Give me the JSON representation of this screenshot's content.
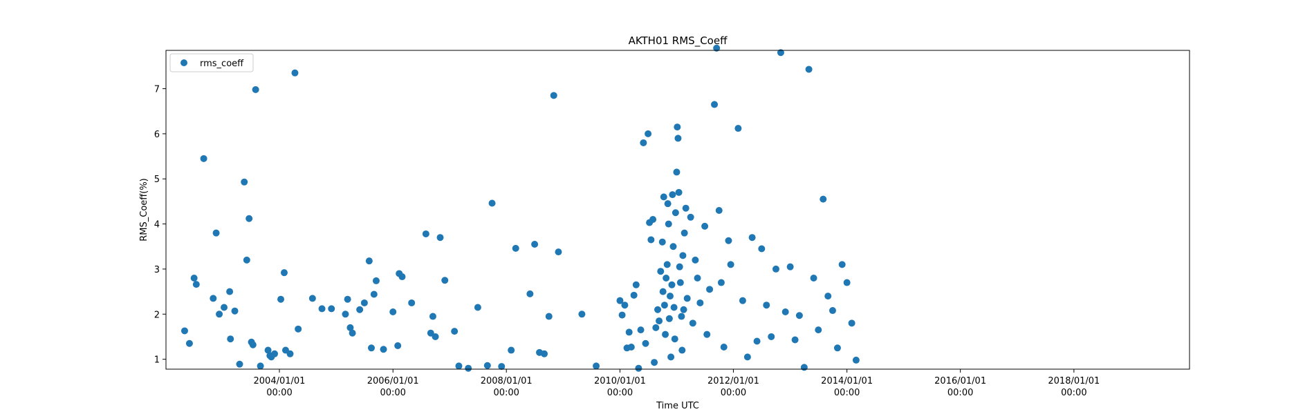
{
  "chart_data": {
    "type": "scatter",
    "title": "AKTH01 RMS_Coeff",
    "xlabel": "Time UTC",
    "ylabel": "RMS_Coeff(%)",
    "x_scale": "date",
    "xlim": [
      "2002-01-01",
      "2020-01-15"
    ],
    "ylim": [
      0.78,
      7.85
    ],
    "x_ticks": [
      {
        "date": "2004-01-01",
        "line1": "2004/01/01",
        "line2": "00:00"
      },
      {
        "date": "2006-01-01",
        "line1": "2006/01/01",
        "line2": "00:00"
      },
      {
        "date": "2008-01-01",
        "line1": "2008/01/01",
        "line2": "00:00"
      },
      {
        "date": "2010-01-01",
        "line1": "2010/01/01",
        "line2": "00:00"
      },
      {
        "date": "2012-01-01",
        "line1": "2012/01/01",
        "line2": "00:00"
      },
      {
        "date": "2014-01-01",
        "line1": "2014/01/01",
        "line2": "00:00"
      },
      {
        "date": "2016-01-01",
        "line1": "2016/01/01",
        "line2": "00:00"
      },
      {
        "date": "2018-01-01",
        "line1": "2018/01/01",
        "line2": "00:00"
      }
    ],
    "y_ticks": [
      1,
      2,
      3,
      4,
      5,
      6,
      7
    ],
    "grid": false,
    "legend_position": "top-left",
    "series": [
      {
        "name": "rms_coeff",
        "color": "#1f77b4",
        "points": [
          [
            "2002-05-01",
            1.63
          ],
          [
            "2002-06-01",
            1.35
          ],
          [
            "2002-07-01",
            2.8
          ],
          [
            "2002-07-15",
            2.66
          ],
          [
            "2002-09-01",
            5.45
          ],
          [
            "2002-11-01",
            2.35
          ],
          [
            "2002-11-20",
            3.8
          ],
          [
            "2002-12-10",
            2.0
          ],
          [
            "2003-01-10",
            2.15
          ],
          [
            "2003-02-15",
            2.5
          ],
          [
            "2003-02-20",
            1.45
          ],
          [
            "2003-03-20",
            2.07
          ],
          [
            "2003-04-20",
            0.89
          ],
          [
            "2003-05-20",
            4.93
          ],
          [
            "2003-06-05",
            3.2
          ],
          [
            "2003-06-20",
            4.12
          ],
          [
            "2003-07-05",
            1.38
          ],
          [
            "2003-07-15",
            1.32
          ],
          [
            "2003-08-01",
            6.98
          ],
          [
            "2003-09-01",
            0.85
          ],
          [
            "2003-10-20",
            1.2
          ],
          [
            "2003-11-01",
            1.08
          ],
          [
            "2003-11-10",
            1.05
          ],
          [
            "2003-12-01",
            1.12
          ],
          [
            "2004-01-10",
            2.33
          ],
          [
            "2004-02-01",
            2.92
          ],
          [
            "2004-02-10",
            1.2
          ],
          [
            "2004-03-10",
            1.12
          ],
          [
            "2004-04-10",
            7.35
          ],
          [
            "2004-05-01",
            1.67
          ],
          [
            "2004-08-01",
            2.35
          ],
          [
            "2004-10-01",
            2.12
          ],
          [
            "2004-12-01",
            2.12
          ],
          [
            "2005-03-01",
            2.0
          ],
          [
            "2005-03-15",
            2.33
          ],
          [
            "2005-04-01",
            1.7
          ],
          [
            "2005-04-15",
            1.58
          ],
          [
            "2005-06-01",
            2.1
          ],
          [
            "2005-07-01",
            2.25
          ],
          [
            "2005-08-01",
            3.18
          ],
          [
            "2005-08-15",
            1.25
          ],
          [
            "2005-09-01",
            2.44
          ],
          [
            "2005-09-15",
            2.74
          ],
          [
            "2005-11-01",
            1.22
          ],
          [
            "2006-01-01",
            2.05
          ],
          [
            "2006-02-01",
            1.3
          ],
          [
            "2006-02-10",
            2.9
          ],
          [
            "2006-03-01",
            2.83
          ],
          [
            "2006-05-01",
            2.25
          ],
          [
            "2006-08-01",
            3.78
          ],
          [
            "2006-09-01",
            1.58
          ],
          [
            "2006-09-15",
            1.95
          ],
          [
            "2006-10-01",
            1.5
          ],
          [
            "2006-11-01",
            3.7
          ],
          [
            "2006-12-01",
            2.75
          ],
          [
            "2007-02-01",
            1.62
          ],
          [
            "2007-03-01",
            0.85
          ],
          [
            "2007-05-01",
            0.8
          ],
          [
            "2007-07-01",
            2.15
          ],
          [
            "2007-09-01",
            0.86
          ],
          [
            "2007-10-01",
            4.46
          ],
          [
            "2007-12-01",
            0.84
          ],
          [
            "2008-02-01",
            1.2
          ],
          [
            "2008-03-01",
            3.46
          ],
          [
            "2008-06-01",
            2.45
          ],
          [
            "2008-07-01",
            3.55
          ],
          [
            "2008-08-01",
            1.15
          ],
          [
            "2008-09-01",
            1.12
          ],
          [
            "2008-10-01",
            1.95
          ],
          [
            "2008-11-01",
            6.85
          ],
          [
            "2008-12-01",
            3.38
          ],
          [
            "2009-05-01",
            2.0
          ],
          [
            "2009-08-01",
            0.85
          ],
          [
            "2010-01-01",
            2.3
          ],
          [
            "2010-01-15",
            1.98
          ],
          [
            "2010-02-01",
            2.2
          ],
          [
            "2010-02-15",
            1.25
          ],
          [
            "2010-03-01",
            1.6
          ],
          [
            "2010-03-15",
            1.27
          ],
          [
            "2010-04-01",
            2.42
          ],
          [
            "2010-04-15",
            2.65
          ],
          [
            "2010-05-01",
            0.8
          ],
          [
            "2010-05-15",
            1.65
          ],
          [
            "2010-06-01",
            5.8
          ],
          [
            "2010-06-15",
            1.35
          ],
          [
            "2010-07-01",
            6.0
          ],
          [
            "2010-07-10",
            4.03
          ],
          [
            "2010-07-20",
            3.65
          ],
          [
            "2010-08-01",
            4.1
          ],
          [
            "2010-08-10",
            0.93
          ],
          [
            "2010-08-20",
            1.7
          ],
          [
            "2010-09-01",
            2.1
          ],
          [
            "2010-09-10",
            1.85
          ],
          [
            "2010-09-20",
            2.95
          ],
          [
            "2010-10-01",
            3.6
          ],
          [
            "2010-10-05",
            2.5
          ],
          [
            "2010-10-10",
            4.6
          ],
          [
            "2010-10-15",
            2.2
          ],
          [
            "2010-10-20",
            1.55
          ],
          [
            "2010-10-25",
            2.8
          ],
          [
            "2010-11-01",
            3.1
          ],
          [
            "2010-11-05",
            4.45
          ],
          [
            "2010-11-10",
            4.0
          ],
          [
            "2010-11-15",
            1.9
          ],
          [
            "2010-11-20",
            2.4
          ],
          [
            "2010-11-25",
            1.05
          ],
          [
            "2010-12-01",
            2.65
          ],
          [
            "2010-12-05",
            4.65
          ],
          [
            "2010-12-10",
            3.5
          ],
          [
            "2010-12-15",
            2.15
          ],
          [
            "2010-12-20",
            1.45
          ],
          [
            "2010-12-25",
            4.25
          ],
          [
            "2011-01-01",
            5.15
          ],
          [
            "2011-01-05",
            6.15
          ],
          [
            "2011-01-10",
            5.9
          ],
          [
            "2011-01-15",
            4.7
          ],
          [
            "2011-01-20",
            3.05
          ],
          [
            "2011-01-25",
            2.7
          ],
          [
            "2011-02-01",
            1.95
          ],
          [
            "2011-02-05",
            1.2
          ],
          [
            "2011-02-10",
            3.3
          ],
          [
            "2011-02-15",
            2.1
          ],
          [
            "2011-02-20",
            3.8
          ],
          [
            "2011-03-01",
            4.35
          ],
          [
            "2011-03-10",
            2.35
          ],
          [
            "2011-04-01",
            4.15
          ],
          [
            "2011-04-15",
            1.8
          ],
          [
            "2011-05-01",
            3.2
          ],
          [
            "2011-05-15",
            2.8
          ],
          [
            "2011-06-01",
            2.25
          ],
          [
            "2011-07-01",
            3.95
          ],
          [
            "2011-07-15",
            1.55
          ],
          [
            "2011-08-01",
            2.55
          ],
          [
            "2011-09-01",
            6.65
          ],
          [
            "2011-09-15",
            7.9
          ],
          [
            "2011-10-01",
            4.3
          ],
          [
            "2011-10-15",
            2.7
          ],
          [
            "2011-11-01",
            1.27
          ],
          [
            "2011-12-01",
            3.63
          ],
          [
            "2011-12-15",
            3.1
          ],
          [
            "2012-02-01",
            6.12
          ],
          [
            "2012-03-01",
            2.3
          ],
          [
            "2012-04-01",
            1.05
          ],
          [
            "2012-05-01",
            3.7
          ],
          [
            "2012-06-01",
            1.4
          ],
          [
            "2012-07-01",
            3.45
          ],
          [
            "2012-08-01",
            2.2
          ],
          [
            "2012-09-01",
            1.5
          ],
          [
            "2012-10-01",
            3.0
          ],
          [
            "2012-11-01",
            7.8
          ],
          [
            "2012-12-01",
            2.05
          ],
          [
            "2013-01-01",
            3.05
          ],
          [
            "2013-02-01",
            1.43
          ],
          [
            "2013-03-01",
            1.97
          ],
          [
            "2013-04-01",
            0.82
          ],
          [
            "2013-05-01",
            7.43
          ],
          [
            "2013-06-01",
            2.8
          ],
          [
            "2013-07-01",
            1.65
          ],
          [
            "2013-08-01",
            4.55
          ],
          [
            "2013-09-01",
            2.4
          ],
          [
            "2013-10-01",
            2.08
          ],
          [
            "2013-11-01",
            1.25
          ],
          [
            "2013-12-01",
            3.1
          ],
          [
            "2014-01-01",
            2.7
          ],
          [
            "2014-02-01",
            1.8
          ],
          [
            "2014-03-01",
            0.98
          ]
        ]
      }
    ]
  }
}
